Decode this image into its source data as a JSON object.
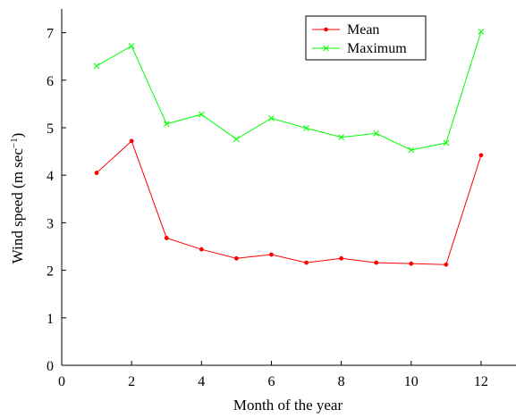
{
  "chart_data": {
    "type": "line",
    "title": "",
    "xlabel": "Month of the year",
    "ylabel": {
      "prefix": "Wind speed (m sec",
      "superscript": "−1",
      "suffix": ")"
    },
    "xlim": [
      0,
      13
    ],
    "ylim": [
      0,
      7.5
    ],
    "xticks": [
      0,
      2,
      4,
      6,
      8,
      10,
      12
    ],
    "yticks": [
      0,
      1,
      2,
      3,
      4,
      5,
      6,
      7
    ],
    "grid": false,
    "legend_position": "top-right",
    "x": [
      1,
      2,
      3,
      4,
      5,
      6,
      7,
      8,
      9,
      10,
      11,
      12
    ],
    "series": [
      {
        "name": "Mean",
        "marker": "dot",
        "color": "#ff0000",
        "values": [
          4.05,
          4.72,
          2.68,
          2.44,
          2.25,
          2.33,
          2.16,
          2.25,
          2.16,
          2.14,
          2.12,
          4.42
        ]
      },
      {
        "name": "Maximum",
        "marker": "x",
        "color": "#00ff00",
        "values": [
          6.3,
          6.72,
          5.08,
          5.28,
          4.76,
          5.2,
          4.99,
          4.8,
          4.88,
          4.53,
          4.68,
          7.02
        ]
      }
    ]
  }
}
